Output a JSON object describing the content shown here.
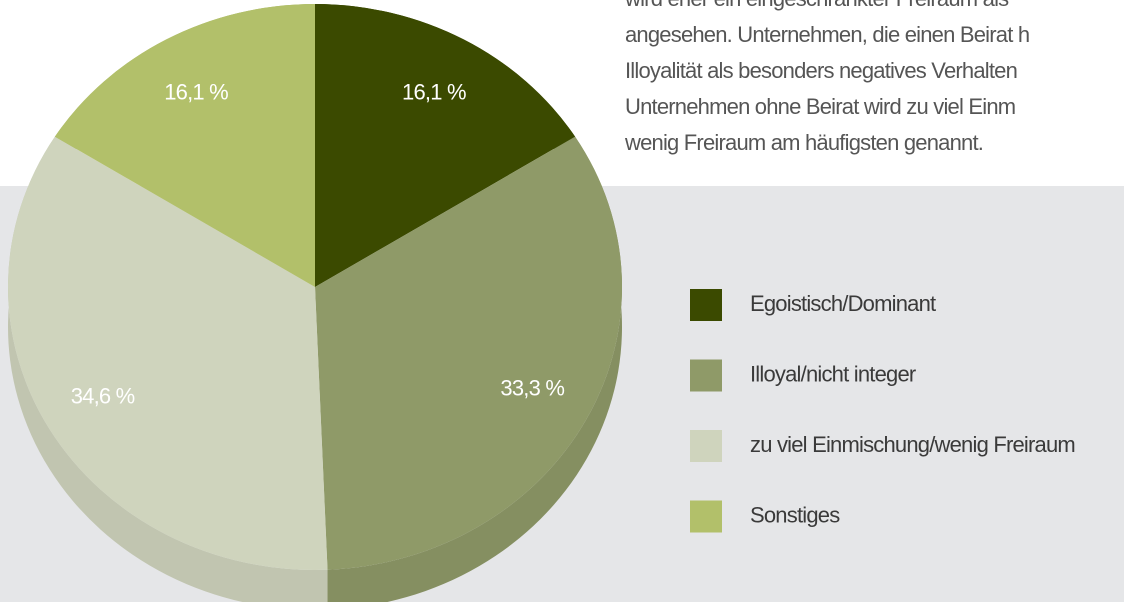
{
  "chart_data": {
    "type": "pie",
    "annotations": [
      "wird eher ein eingeschränkter Freiraum als",
      "angesehen. Unternehmen, die einen Beirat h",
      "Illoyalität als besonders negatives Verhalten",
      "Unternehmen ohne Beirat wird zu viel Einm",
      "wenig Freiraum am häufigsten genannt."
    ],
    "categories": [
      "Egoistisch/Dominant",
      "Illoyal/nicht integer",
      "zu viel Einmischung/wenig Freiraum",
      "Sonstiges"
    ],
    "values": [
      16.1,
      33.3,
      34.6,
      16.1
    ],
    "value_labels": [
      "16,1 %",
      "33,3 %",
      "34,6 %",
      "16,1 %"
    ],
    "colors": [
      "#3b4a00",
      "#8f9a68",
      "#cfd4bd",
      "#b2c06a"
    ],
    "legend": "right"
  }
}
